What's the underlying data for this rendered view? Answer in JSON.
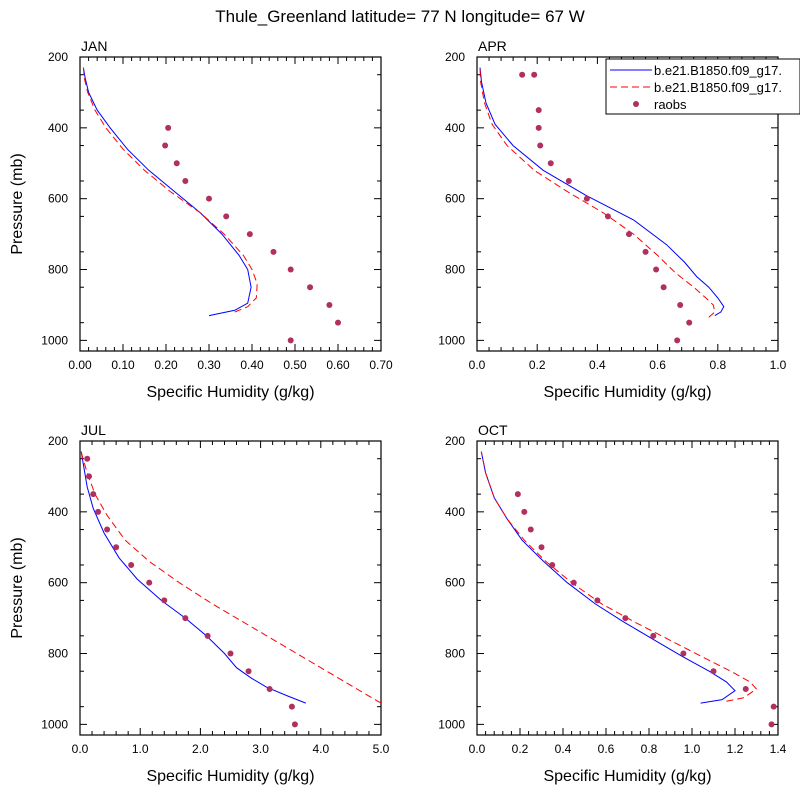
{
  "title": "Thule_Greenland  latitude= 77 N longitude= 67 W",
  "colors": {
    "model1": "#0000ff",
    "model2": "#ff0000",
    "raobs": "#b03060"
  },
  "legend": {
    "placement": "top-right of APR panel",
    "entries": [
      "b.e21.B1850.f09_g17.",
      "b.e21.B1850.f09_g17.",
      "raobs"
    ]
  },
  "chart_data": [
    {
      "type": "line",
      "panel": "JAN",
      "xlabel": "Specific Humidity (g/kg)",
      "ylabel": "Pressure (mb)",
      "xlim": [
        0,
        0.7
      ],
      "ylim": [
        1030,
        200
      ],
      "xticks": [
        "0.00",
        "0.10",
        "0.20",
        "0.30",
        "0.40",
        "0.50",
        "0.60",
        "0.70"
      ],
      "yticks": [
        "200",
        "400",
        "600",
        "800",
        "1000"
      ],
      "series": [
        {
          "name": "b.e21.B1850.f09_g17.",
          "style": "solid",
          "x": [
            0.3,
            0.36,
            0.39,
            0.398,
            0.39,
            0.37,
            0.33,
            0.28,
            0.22,
            0.16,
            0.11,
            0.07,
            0.04,
            0.02,
            0.012,
            0.008
          ],
          "y": [
            930,
            915,
            895,
            850,
            800,
            760,
            700,
            640,
            580,
            520,
            460,
            400,
            350,
            300,
            260,
            230
          ]
        },
        {
          "name": "b.e21.B1850.f09_g17.",
          "style": "dashed",
          "x": [
            0.36,
            0.39,
            0.41,
            0.412,
            0.4,
            0.38,
            0.335,
            0.28,
            0.21,
            0.15,
            0.1,
            0.06,
            0.035,
            0.018,
            0.01,
            0.008
          ],
          "y": [
            920,
            905,
            880,
            840,
            800,
            760,
            700,
            640,
            580,
            520,
            460,
            400,
            350,
            300,
            260,
            230
          ]
        },
        {
          "name": "raobs",
          "style": "markers",
          "x": [
            0.49,
            0.6,
            0.58,
            0.535,
            0.49,
            0.45,
            0.395,
            0.34,
            0.3,
            0.245,
            0.225,
            0.198,
            0.205
          ],
          "y": [
            1000,
            950,
            900,
            850,
            800,
            750,
            700,
            650,
            600,
            550,
            500,
            450,
            400
          ]
        }
      ]
    },
    {
      "type": "line",
      "panel": "APR",
      "xlabel": "Specific Humidity (g/kg)",
      "ylabel": "",
      "xlim": [
        0,
        1.0
      ],
      "ylim": [
        1030,
        200
      ],
      "xticks": [
        "0.0",
        "0.2",
        "0.4",
        "0.6",
        "0.8",
        "1.0"
      ],
      "yticks": [
        "200",
        "400",
        "600",
        "800",
        "1000"
      ],
      "series": [
        {
          "name": "b.e21.B1850.f09_g17.",
          "style": "solid",
          "x": [
            0.79,
            0.81,
            0.82,
            0.8,
            0.77,
            0.73,
            0.69,
            0.63,
            0.52,
            0.36,
            0.22,
            0.12,
            0.06,
            0.03,
            0.015,
            0.01
          ],
          "y": [
            930,
            920,
            905,
            880,
            850,
            820,
            780,
            730,
            660,
            590,
            520,
            450,
            390,
            330,
            270,
            230
          ]
        },
        {
          "name": "b.e21.B1850.f09_g17.",
          "style": "dashed",
          "x": [
            0.77,
            0.79,
            0.785,
            0.76,
            0.72,
            0.66,
            0.6,
            0.52,
            0.42,
            0.3,
            0.19,
            0.1,
            0.05,
            0.025,
            0.012,
            0.01
          ],
          "y": [
            935,
            920,
            900,
            880,
            850,
            810,
            760,
            700,
            640,
            580,
            520,
            450,
            390,
            330,
            270,
            230
          ]
        },
        {
          "name": "raobs",
          "style": "markers",
          "x": [
            0.665,
            0.705,
            0.675,
            0.62,
            0.595,
            0.56,
            0.505,
            0.435,
            0.365,
            0.305,
            0.245,
            0.21,
            0.205,
            0.205,
            0.19,
            0.15
          ],
          "y": [
            1000,
            950,
            900,
            850,
            800,
            750,
            700,
            650,
            600,
            550,
            500,
            450,
            400,
            350,
            250,
            250
          ]
        }
      ]
    },
    {
      "type": "line",
      "panel": "JUL",
      "xlabel": "Specific Humidity (g/kg)",
      "ylabel": "Pressure (mb)",
      "xlim": [
        0,
        5.0
      ],
      "ylim": [
        1030,
        200
      ],
      "xticks": [
        "0.0",
        "1.0",
        "2.0",
        "3.0",
        "4.0",
        "5.0"
      ],
      "yticks": [
        "200",
        "400",
        "600",
        "800",
        "1000"
      ],
      "series": [
        {
          "name": "b.e21.B1850.f09_g17.",
          "style": "solid",
          "x": [
            3.75,
            3.45,
            3.1,
            2.85,
            2.6,
            2.4,
            2.1,
            1.75,
            1.35,
            0.95,
            0.65,
            0.4,
            0.22,
            0.12,
            0.06,
            0.02
          ],
          "y": [
            940,
            920,
            895,
            870,
            840,
            800,
            750,
            700,
            650,
            590,
            530,
            460,
            390,
            330,
            270,
            230
          ]
        },
        {
          "name": "b.e21.B1850.f09_g17.",
          "style": "dashed",
          "x": [
            5.0,
            4.6,
            4.0,
            3.4,
            2.8,
            2.2,
            1.65,
            1.15,
            0.75,
            0.45,
            0.25,
            0.12,
            0.05,
            0.02
          ],
          "y": [
            940,
            900,
            840,
            780,
            720,
            660,
            600,
            540,
            480,
            410,
            350,
            290,
            250,
            230
          ]
        },
        {
          "name": "raobs",
          "style": "markers",
          "x": [
            3.57,
            3.52,
            3.15,
            2.8,
            2.5,
            2.12,
            1.75,
            1.4,
            1.15,
            0.85,
            0.6,
            0.45,
            0.3,
            0.22,
            0.15,
            0.12
          ],
          "y": [
            1000,
            950,
            900,
            850,
            800,
            750,
            700,
            650,
            600,
            550,
            500,
            450,
            400,
            350,
            300,
            250
          ]
        }
      ]
    },
    {
      "type": "line",
      "panel": "OCT",
      "xlabel": "Specific Humidity (g/kg)",
      "ylabel": "",
      "xlim": [
        0,
        1.4
      ],
      "ylim": [
        1030,
        200
      ],
      "xticks": [
        "0.0",
        "0.2",
        "0.4",
        "0.6",
        "0.8",
        "1.0",
        "1.2",
        "1.4"
      ],
      "yticks": [
        "200",
        "400",
        "600",
        "800",
        "1000"
      ],
      "series": [
        {
          "name": "b.e21.B1850.f09_g17.",
          "style": "solid",
          "x": [
            1.04,
            1.14,
            1.2,
            1.16,
            1.08,
            0.96,
            0.82,
            0.68,
            0.55,
            0.42,
            0.31,
            0.21,
            0.14,
            0.08,
            0.04,
            0.02
          ],
          "y": [
            940,
            930,
            905,
            880,
            850,
            810,
            760,
            710,
            660,
            600,
            540,
            480,
            420,
            360,
            290,
            230
          ]
        },
        {
          "name": "b.e21.B1850.f09_g17.",
          "style": "dashed",
          "x": [
            1.16,
            1.24,
            1.3,
            1.27,
            1.18,
            1.05,
            0.89,
            0.73,
            0.58,
            0.44,
            0.32,
            0.22,
            0.14,
            0.08,
            0.04,
            0.02
          ],
          "y": [
            935,
            925,
            900,
            880,
            850,
            810,
            760,
            710,
            660,
            600,
            540,
            480,
            420,
            360,
            290,
            230
          ]
        },
        {
          "name": "raobs",
          "style": "markers",
          "x": [
            1.37,
            1.38,
            1.25,
            1.1,
            0.96,
            0.82,
            0.69,
            0.56,
            0.45,
            0.35,
            0.3,
            0.25,
            0.22,
            0.19
          ],
          "y": [
            1000,
            950,
            900,
            850,
            800,
            750,
            700,
            650,
            600,
            550,
            500,
            450,
            400,
            350
          ]
        }
      ]
    }
  ]
}
